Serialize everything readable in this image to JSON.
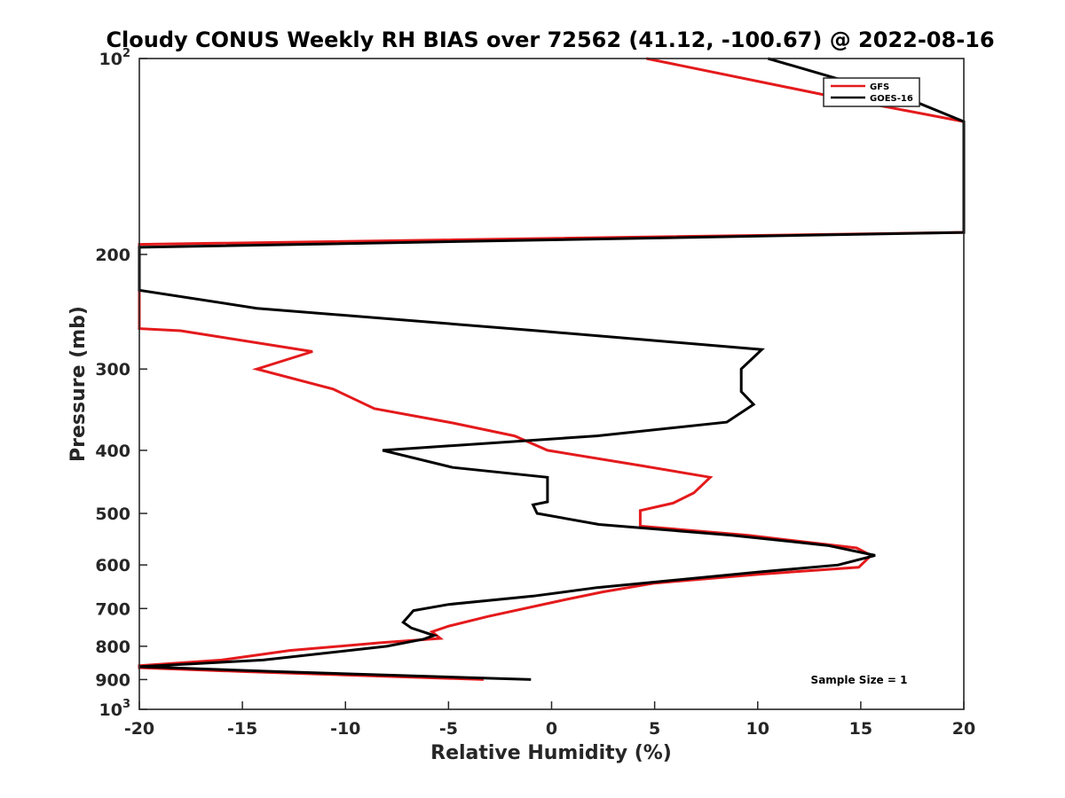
{
  "chart_data": {
    "type": "line",
    "title": "Cloudy CONUS Weekly RH BIAS over 72562 (41.12, -100.67) @ 2022-08-16",
    "xlabel": "Relative Humidity (%)",
    "ylabel": "Pressure (mb)",
    "xlim": [
      -20,
      20
    ],
    "ylim": [
      100,
      1000
    ],
    "yscale": "log",
    "y_reversed": true,
    "x_ticks": [
      "-20",
      "-15",
      "-10",
      "-5",
      "0",
      "5",
      "10",
      "15",
      "20"
    ],
    "y_ticks": [
      {
        "value": 100,
        "base": "10",
        "exp": "2"
      },
      {
        "value": 200,
        "label": "200"
      },
      {
        "value": 300,
        "label": "300"
      },
      {
        "value": 400,
        "label": "400"
      },
      {
        "value": 500,
        "label": "500"
      },
      {
        "value": 600,
        "label": "600"
      },
      {
        "value": 700,
        "label": "700"
      },
      {
        "value": 800,
        "label": "800"
      },
      {
        "value": 900,
        "label": "900"
      },
      {
        "value": 1000,
        "base": "10",
        "exp": "3"
      }
    ],
    "grid": false,
    "legend_position": "top-right",
    "annotation": "Sample Size = 1",
    "series": [
      {
        "name": "GFS",
        "color": "#e41a1c",
        "points": [
          [
            4.6,
            100
          ],
          [
            14,
            115
          ],
          [
            20,
            125
          ],
          [
            20,
            185
          ],
          [
            -20,
            193
          ],
          [
            -20,
            260
          ],
          [
            -18,
            262
          ],
          [
            -11.6,
            282
          ],
          [
            -14.3,
            300
          ],
          [
            -10.6,
            322
          ],
          [
            -8.6,
            345
          ],
          [
            -4.8,
            363
          ],
          [
            -1.8,
            380
          ],
          [
            -0.2,
            400
          ],
          [
            4.3,
            422
          ],
          [
            7.7,
            440
          ],
          [
            6.9,
            465
          ],
          [
            5.9,
            482
          ],
          [
            4.3,
            495
          ],
          [
            4.3,
            523
          ],
          [
            9.5,
            540
          ],
          [
            14.8,
            565
          ],
          [
            15.5,
            580
          ],
          [
            14.9,
            605
          ],
          [
            10.1,
            620
          ],
          [
            5,
            640
          ],
          [
            2.5,
            660
          ],
          [
            0.5,
            680
          ],
          [
            -3.1,
            720
          ],
          [
            -5,
            745
          ],
          [
            -5.8,
            760
          ],
          [
            -5.4,
            778
          ],
          [
            -8.3,
            790
          ],
          [
            -12.7,
            812
          ],
          [
            -16,
            840
          ],
          [
            -20,
            857
          ],
          [
            -20,
            863
          ],
          [
            -15,
            875
          ],
          [
            -3.3,
            900
          ]
        ]
      },
      {
        "name": "GOES-16",
        "color": "#000000",
        "points": [
          [
            10.5,
            100
          ],
          [
            17.5,
            116
          ],
          [
            20,
            125
          ],
          [
            20,
            185
          ],
          [
            -20,
            195
          ],
          [
            -20,
            227
          ],
          [
            -14.3,
            242
          ],
          [
            -0.7,
            262
          ],
          [
            10.2,
            280
          ],
          [
            9.2,
            300
          ],
          [
            9.2,
            325
          ],
          [
            9.8,
            340
          ],
          [
            8.5,
            362
          ],
          [
            2.2,
            380
          ],
          [
            -8.2,
            400
          ],
          [
            -4.8,
            425
          ],
          [
            -0.2,
            440
          ],
          [
            -0.2,
            480
          ],
          [
            -0.9,
            485
          ],
          [
            -0.7,
            500
          ],
          [
            2.3,
            520
          ],
          [
            8.7,
            540
          ],
          [
            13.4,
            560
          ],
          [
            15.7,
            580
          ],
          [
            13.9,
            600
          ],
          [
            10.1,
            615
          ],
          [
            2.2,
            650
          ],
          [
            -0.9,
            670
          ],
          [
            -5,
            690
          ],
          [
            -6.7,
            705
          ],
          [
            -7.2,
            735
          ],
          [
            -6.8,
            750
          ],
          [
            -5.7,
            770
          ],
          [
            -6.2,
            780
          ],
          [
            -8,
            800
          ],
          [
            -14,
            840
          ],
          [
            -20,
            860
          ],
          [
            -13.4,
            875
          ],
          [
            -1,
            900
          ]
        ]
      }
    ]
  }
}
